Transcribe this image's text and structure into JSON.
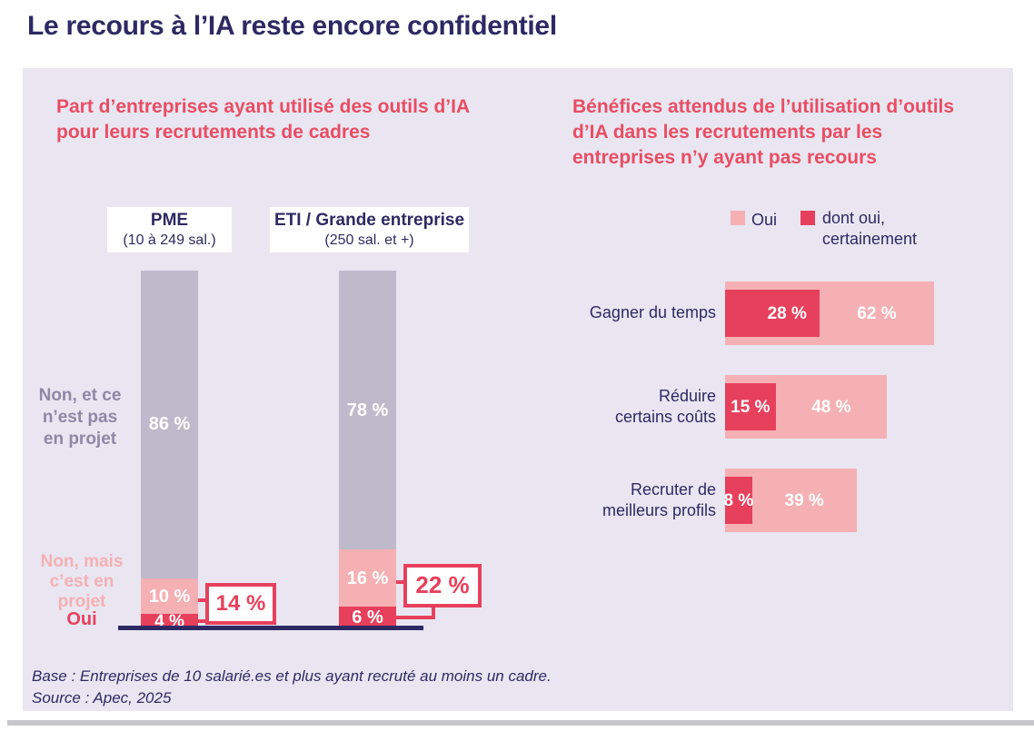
{
  "page_title": "Le recours à l’IA reste encore confidentiel",
  "colors": {
    "navy": "#2e2963",
    "title_red": "#e94d63",
    "bar_red": "#e7405c",
    "bar_pink": "#f5b0b4",
    "bar_gray": "#bebacb",
    "panel_bg": "#e9e6f1",
    "muted_label": "#8d88a5",
    "white": "#ffffff",
    "bottom_rule": "#c7c6cb"
  },
  "footer": {
    "base": "Base : Entreprises de 10 salarié.es et plus ayant recruté au moins un cadre.",
    "source": "Source : Apec, 2025"
  },
  "chart_data": [
    {
      "type": "bar",
      "variant": "stacked-vertical",
      "title": "Part d’entreprises ayant utilisé des outils d’IA pour leurs recrutements de cadres",
      "unit": "%",
      "ylim": [
        0,
        100
      ],
      "categories": [
        "PME",
        "ETI / Grande entreprise"
      ],
      "category_subtitles": [
        "(10 à 249 sal.)",
        "(250 sal. et +)"
      ],
      "series": [
        {
          "name": "Non, et ce n’est pas en projet",
          "color": "#bebacb",
          "values": [
            86,
            78
          ]
        },
        {
          "name": "Non, mais c’est en projet",
          "color": "#f5b0b4",
          "values": [
            10,
            16
          ]
        },
        {
          "name": "Oui",
          "color": "#e7405c",
          "values": [
            4,
            6
          ]
        }
      ],
      "callouts": {
        "description": "somme Oui + Non mais c’est en projet",
        "values": [
          14,
          22
        ],
        "labels": [
          "14 %",
          "22 %"
        ]
      }
    },
    {
      "type": "bar",
      "variant": "overlapped-horizontal",
      "title": "Bénéfices attendus de l’utilisation d’outils d’IA dans les recrutements par les entreprises n’y ayant pas recours",
      "unit": "%",
      "legend": [
        {
          "label": "Oui",
          "color": "#f5b0b4"
        },
        {
          "label": "dont oui, certainement",
          "color": "#e7405c"
        }
      ],
      "categories": [
        "Gagner du temps",
        "Réduire certains coûts",
        "Recruter de meilleurs profils"
      ],
      "series": [
        {
          "name": "Oui",
          "color": "#f5b0b4",
          "values": [
            62,
            48,
            39
          ]
        },
        {
          "name": "dont oui, certainement",
          "color": "#e7405c",
          "values": [
            28,
            15,
            8
          ]
        }
      ]
    }
  ]
}
